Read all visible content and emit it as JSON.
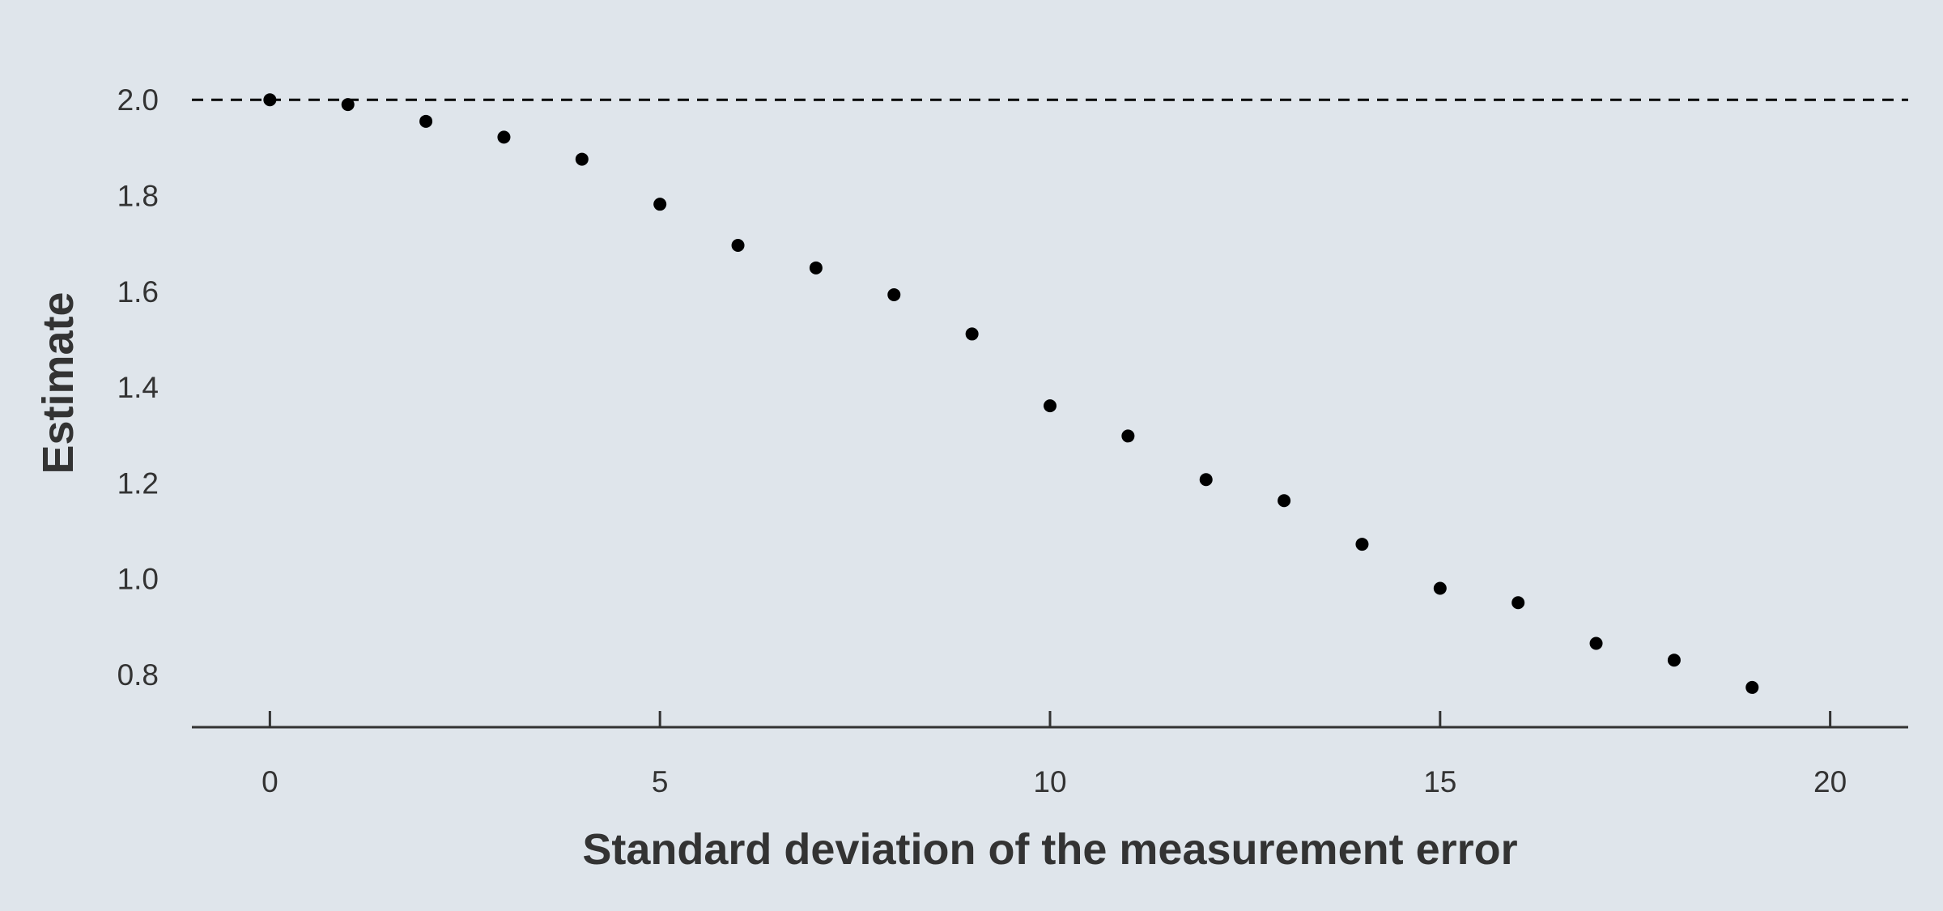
{
  "chart_data": {
    "type": "scatter",
    "title": "",
    "xlabel": "Standard deviation of the measurement error",
    "ylabel": "Estimate",
    "xlim": [
      -1,
      21
    ],
    "ylim": [
      0.69,
      2.09
    ],
    "x_ticks": [
      0,
      5,
      10,
      15,
      20
    ],
    "x_tick_labels": [
      "0",
      "5",
      "10",
      "15",
      "20"
    ],
    "y_ticks": [
      0.8,
      1.0,
      1.2,
      1.4,
      1.6,
      1.8,
      2.0
    ],
    "y_tick_labels": [
      "0.8",
      "1.0",
      "1.2",
      "1.4",
      "1.6",
      "1.8",
      "2.0"
    ],
    "reference_line": {
      "y": 2.0,
      "style": "dashed"
    },
    "grid": false,
    "background": "#dfe5eb",
    "point_color": "#000000",
    "axis_color": "#333333",
    "series": [
      {
        "x": [
          0,
          1,
          2,
          3,
          4,
          5,
          6,
          7,
          8,
          9,
          10,
          11,
          12,
          13,
          14,
          15,
          16,
          17,
          18,
          19
        ],
        "y": [
          2.0,
          1.99,
          1.955,
          1.922,
          1.876,
          1.782,
          1.696,
          1.649,
          1.593,
          1.511,
          1.361,
          1.298,
          1.207,
          1.163,
          1.072,
          0.98,
          0.95,
          0.865,
          0.83,
          0.773
        ]
      }
    ]
  }
}
